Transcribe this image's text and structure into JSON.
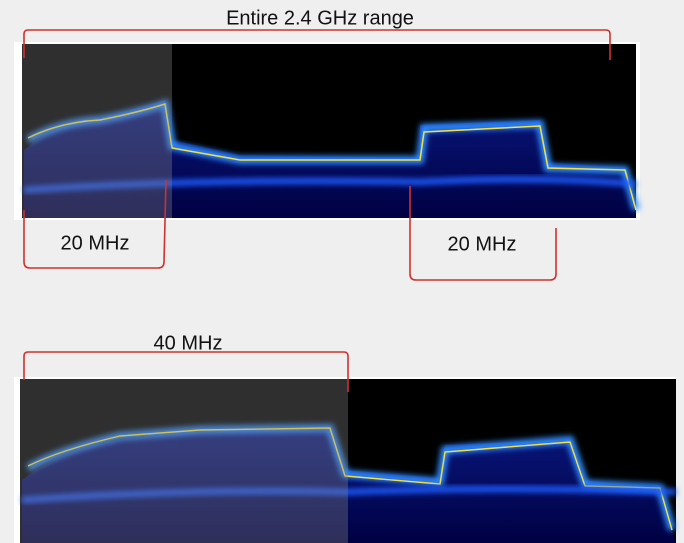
{
  "annotations": {
    "title": "Entire 2.4 GHz range",
    "left_band": "20 MHz",
    "right_band": "20 MHz",
    "wide_band": "40 MHz"
  }
}
